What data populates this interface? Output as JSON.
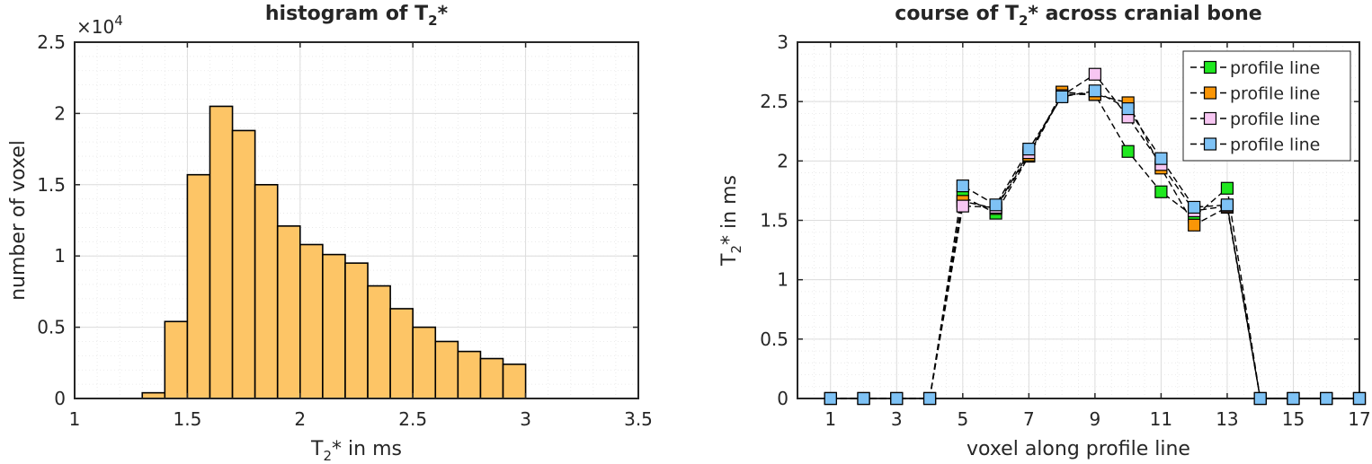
{
  "chart_data": [
    {
      "type": "bar",
      "title": "histogram of T",
      "title_sub": "2",
      "title_suffix": "*",
      "xlabel": "T",
      "xlabel_sub": "2",
      "xlabel_suffix": "* in ms",
      "ylabel": "number of voxel",
      "exponent_base": "×10",
      "exponent_power": "4",
      "xlim": [
        1,
        3.5
      ],
      "ylim": [
        0,
        2.5
      ],
      "xticks": [
        "1",
        "1.5",
        "2",
        "2.5",
        "3",
        "3.5"
      ],
      "yticks": [
        "0",
        "0.5",
        "1",
        "1.5",
        "2",
        "2.5"
      ],
      "bin_edges": [
        1.3,
        1.4,
        1.5,
        1.6,
        1.7,
        1.8,
        1.9,
        2.0,
        2.1,
        2.2,
        2.3,
        2.4,
        2.5,
        2.6,
        2.7,
        2.8,
        2.9,
        3.0
      ],
      "values": [
        0.04,
        0.54,
        1.57,
        2.05,
        1.88,
        1.5,
        1.21,
        1.08,
        1.01,
        0.95,
        0.79,
        0.63,
        0.5,
        0.4,
        0.33,
        0.28,
        0.24
      ],
      "bar_color": "#fdc566",
      "grid": true
    },
    {
      "type": "line",
      "title": "course of T",
      "title_sub": "2",
      "title_suffix": "* across cranial bone",
      "xlabel": "voxel along profile line",
      "ylabel": "T",
      "ylabel_sub": "2",
      "ylabel_suffix": "* in ms",
      "xlim": [
        0,
        17
      ],
      "ylim": [
        0,
        3
      ],
      "xticks": [
        "1",
        "3",
        "5",
        "7",
        "9",
        "11",
        "13",
        "15",
        "17"
      ],
      "yticks": [
        "0",
        "0.5",
        "1",
        "1.5",
        "2",
        "2.5",
        "3"
      ],
      "x": [
        1,
        2,
        3,
        4,
        5,
        6,
        7,
        8,
        9,
        10,
        11,
        12,
        13,
        14,
        15,
        16,
        17
      ],
      "legend_position": "top-right",
      "grid": true,
      "series": [
        {
          "name": "profile line",
          "color": "#1fe81f",
          "values": [
            0,
            0,
            0,
            0,
            1.7,
            1.56,
            2.04,
            2.56,
            2.56,
            2.08,
            1.74,
            1.53,
            1.77,
            0,
            0,
            0,
            0
          ]
        },
        {
          "name": "profile line",
          "color": "#fa9607",
          "values": [
            0,
            0,
            0,
            0,
            1.66,
            1.6,
            2.05,
            2.58,
            2.56,
            2.49,
            1.94,
            1.46,
            1.61,
            0,
            0,
            0,
            0
          ]
        },
        {
          "name": "profile line",
          "color": "#f7c6f2",
          "values": [
            0,
            0,
            0,
            0,
            1.62,
            1.61,
            2.07,
            2.55,
            2.73,
            2.37,
            1.97,
            1.58,
            1.62,
            0,
            0,
            0,
            0
          ]
        },
        {
          "name": "profile line",
          "color": "#7ec2f5",
          "values": [
            0,
            0,
            0,
            0,
            1.79,
            1.63,
            2.1,
            2.54,
            2.59,
            2.44,
            2.02,
            1.61,
            1.63,
            0,
            0,
            0,
            0
          ]
        }
      ]
    }
  ]
}
